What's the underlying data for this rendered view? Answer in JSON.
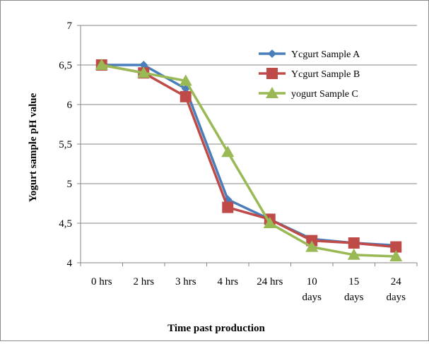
{
  "chart_data": {
    "type": "line",
    "title": "",
    "xlabel": "Time  past production",
    "ylabel": "Yogurt sample pH value",
    "categories": [
      [
        "0 hrs"
      ],
      [
        "2 hrs"
      ],
      [
        "3 hrs"
      ],
      [
        "4 hrs"
      ],
      [
        "24 hrs"
      ],
      [
        "10",
        "days"
      ],
      [
        "15",
        "days"
      ],
      [
        "24",
        "days"
      ]
    ],
    "ylim": [
      4,
      7
    ],
    "yticks": [
      "4",
      "4,5",
      "5",
      "5,5",
      "6",
      "6,5",
      "7"
    ],
    "ytick_values": [
      4,
      4.5,
      5,
      5.5,
      6,
      6.5,
      7
    ],
    "grid": "horizontal",
    "legend_position": "top-right",
    "series": [
      {
        "name": "Ycgurt Sample A",
        "color": "#4a7ebb",
        "marker": "diamond",
        "values": [
          6.5,
          6.5,
          6.2,
          4.8,
          4.55,
          4.3,
          4.25,
          4.22
        ]
      },
      {
        "name": "Ycgurt Sample B",
        "color": "#be4b48",
        "marker": "square",
        "values": [
          6.5,
          6.4,
          6.1,
          4.7,
          4.55,
          4.28,
          4.25,
          4.2
        ]
      },
      {
        "name": "yogurt Sample C",
        "color": "#98b954",
        "marker": "triangle",
        "values": [
          6.5,
          6.4,
          6.3,
          5.4,
          4.5,
          4.2,
          4.1,
          4.08
        ]
      }
    ]
  }
}
